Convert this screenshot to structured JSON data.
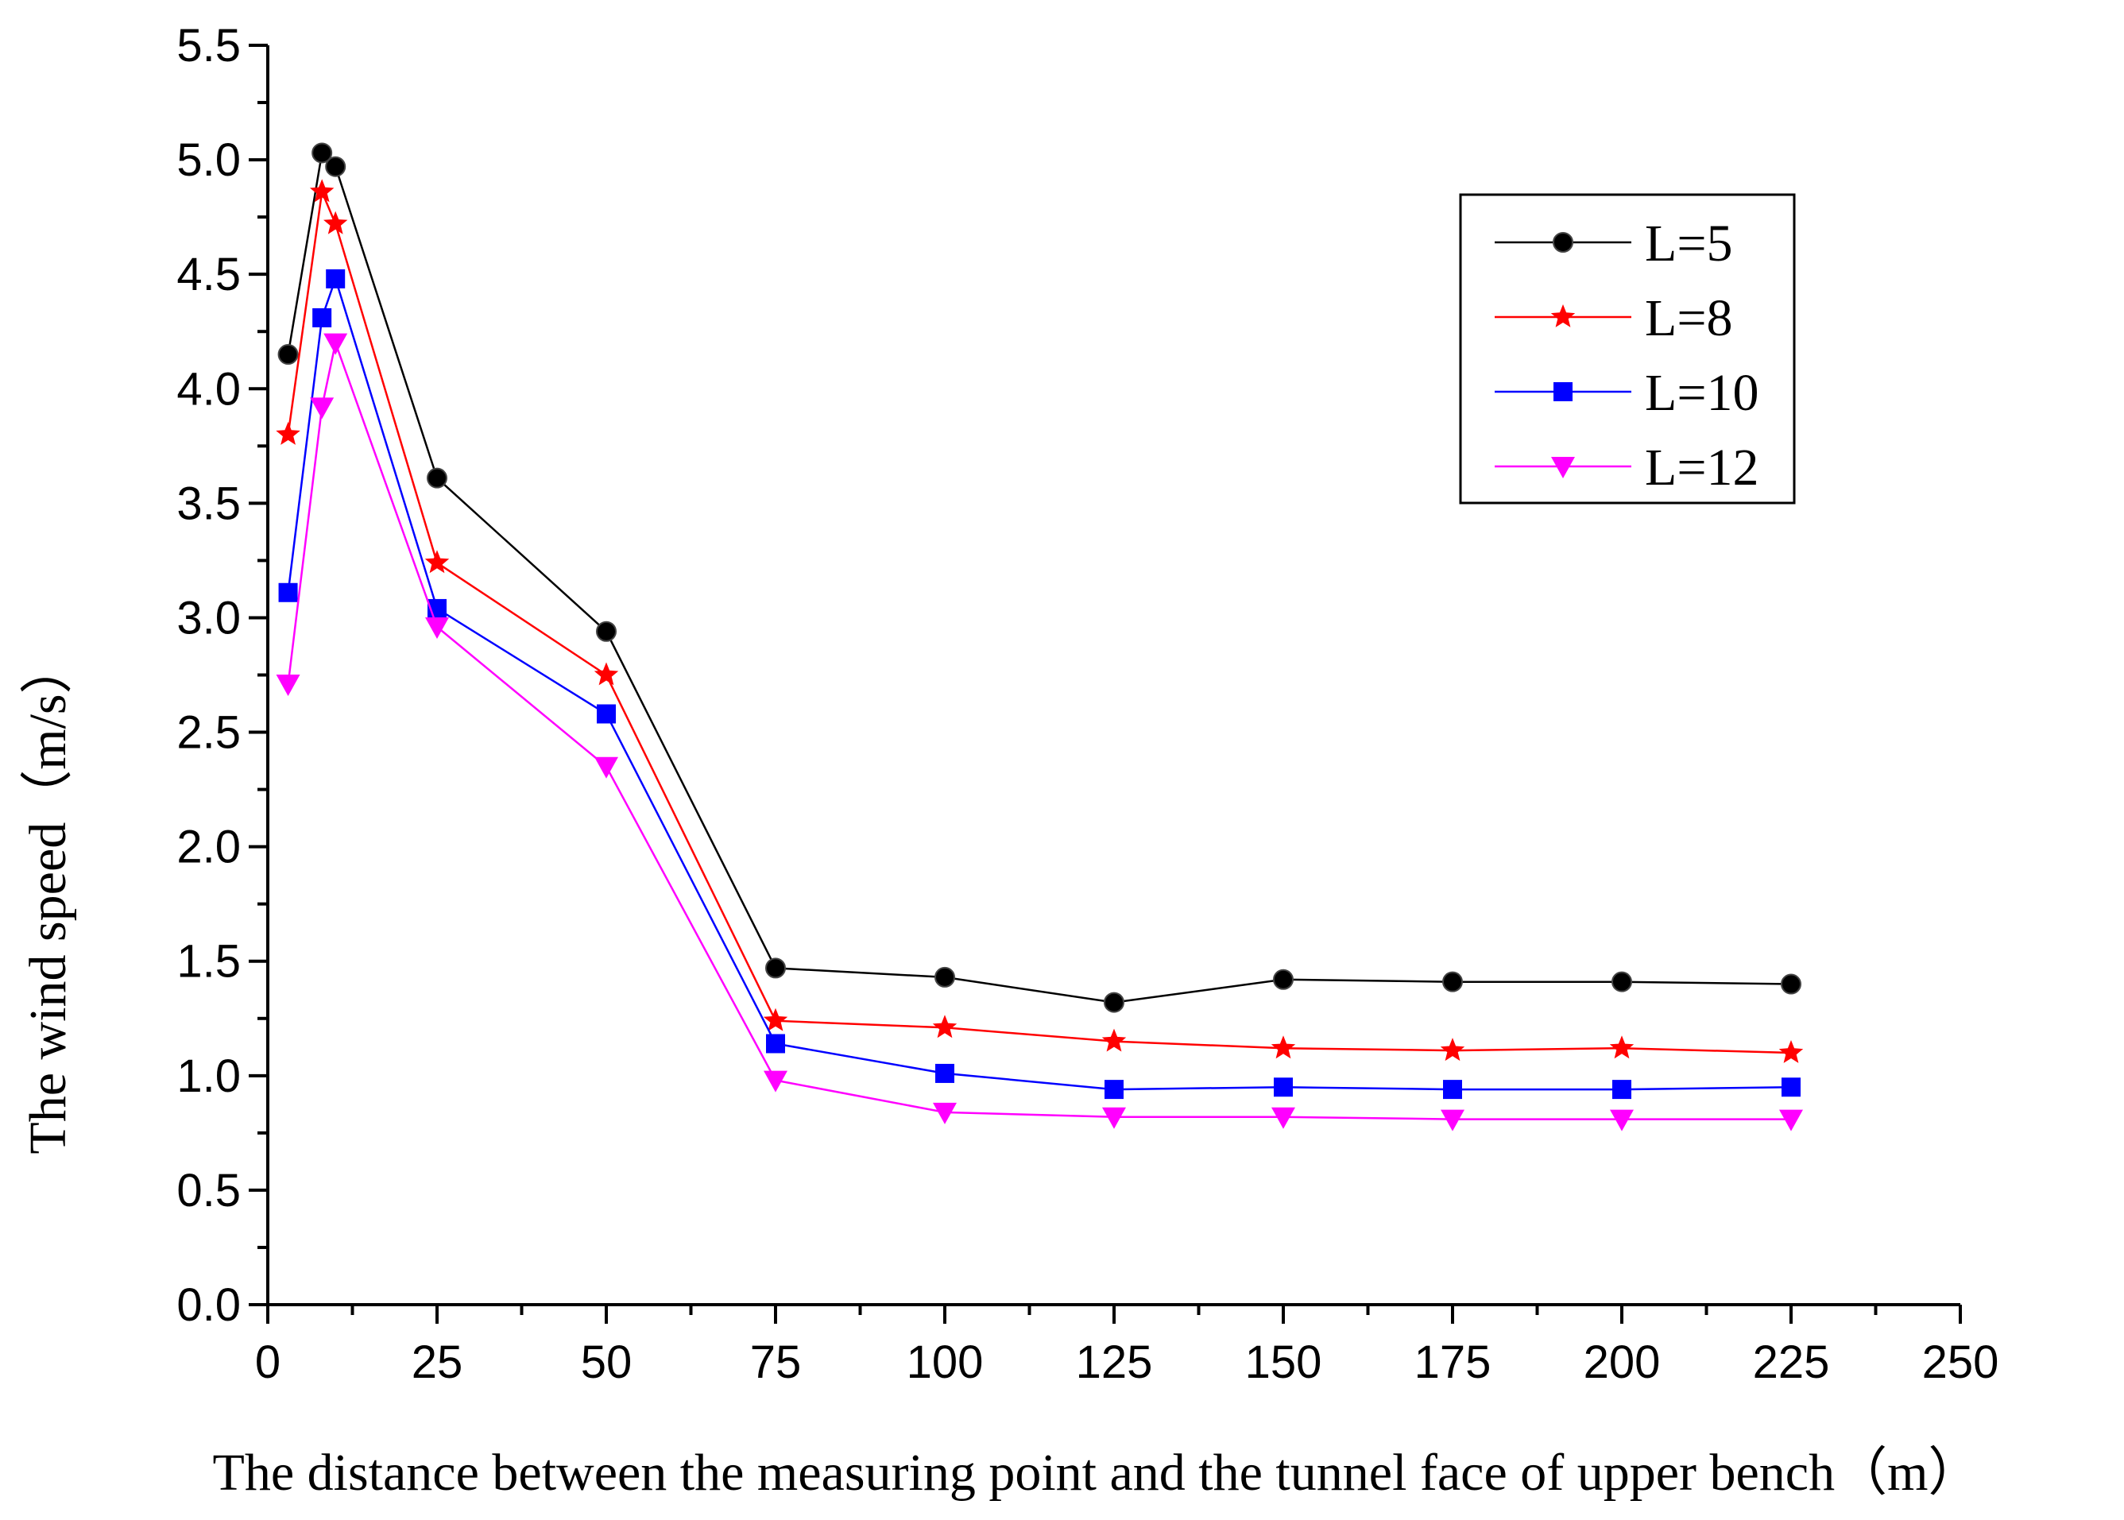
{
  "chart_data": {
    "type": "line",
    "title": "",
    "xlabel": "The distance between the measuring point and the tunnel face of  upper bench（m）",
    "ylabel": "The wind speed（m/s）",
    "xlim": [
      0,
      250
    ],
    "ylim": [
      0,
      5.5
    ],
    "xticks": [
      "0",
      "25",
      "50",
      "75",
      "100",
      "125",
      "150",
      "175",
      "200",
      "225",
      "250"
    ],
    "yticks": [
      "0.0",
      "0.5",
      "1.0",
      "1.5",
      "2.0",
      "2.5",
      "3.0",
      "3.5",
      "4.0",
      "4.5",
      "5.0",
      "5.5"
    ],
    "grid": false,
    "legend_position": "top-right",
    "x": [
      3,
      8,
      10,
      25,
      50,
      75,
      100,
      125,
      150,
      175,
      200,
      225
    ],
    "series": [
      {
        "name": "L=5",
        "color": "#000000",
        "marker": "circle",
        "values": [
          4.15,
          5.03,
          4.97,
          3.61,
          2.94,
          1.47,
          1.43,
          1.32,
          1.42,
          1.41,
          1.41,
          1.4
        ]
      },
      {
        "name": "L=8",
        "color": "#ff0000",
        "marker": "star",
        "values": [
          3.8,
          4.86,
          4.72,
          3.24,
          2.75,
          1.24,
          1.21,
          1.15,
          1.12,
          1.11,
          1.12,
          1.1
        ]
      },
      {
        "name": "L=10",
        "color": "#0000ff",
        "marker": "square",
        "values": [
          3.11,
          4.31,
          4.48,
          3.04,
          2.58,
          1.14,
          1.01,
          0.94,
          0.95,
          0.94,
          0.94,
          0.95
        ]
      },
      {
        "name": "L=12",
        "color": "#ff00ff",
        "marker": "triangle-down",
        "values": [
          2.71,
          3.92,
          4.2,
          2.96,
          2.35,
          0.98,
          0.84,
          0.82,
          0.82,
          0.81,
          0.81,
          0.81
        ]
      }
    ]
  }
}
